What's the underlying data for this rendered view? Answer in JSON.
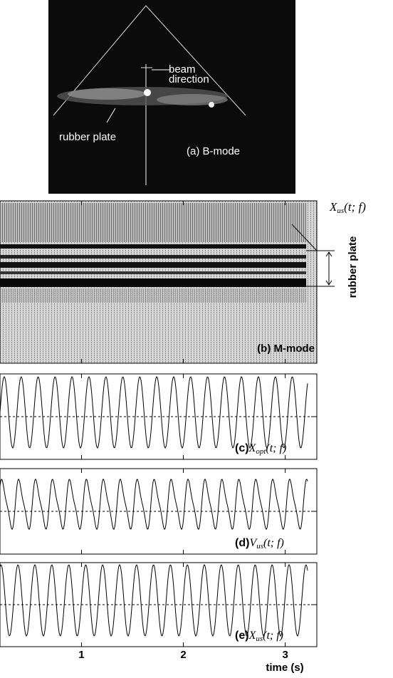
{
  "bmode": {
    "beam_label": [
      "beam",
      "direction"
    ],
    "plate_label": "rubber plate",
    "panel_label": "(a) B-mode"
  },
  "mmode": {
    "panel_label": "(b) M-mode",
    "side_label": {
      "symbol": "X",
      "sub": "us",
      "args": "(t; f)"
    },
    "plate_label": "rubber plate"
  },
  "traces": [
    {
      "prefix": "(c)",
      "symbol": "X",
      "sub": "opt",
      "args": "(t; f)"
    },
    {
      "prefix": "(d)",
      "symbol": "V",
      "sub": "us",
      "args": "(t; f)"
    },
    {
      "prefix": "(e)",
      "symbol": "X",
      "sub": "us",
      "args": "(t; f)"
    }
  ],
  "time_axis": {
    "xlim": [
      0.2,
      3.31
    ],
    "ticks": [
      1,
      2,
      3
    ],
    "label": "time (s)"
  }
}
